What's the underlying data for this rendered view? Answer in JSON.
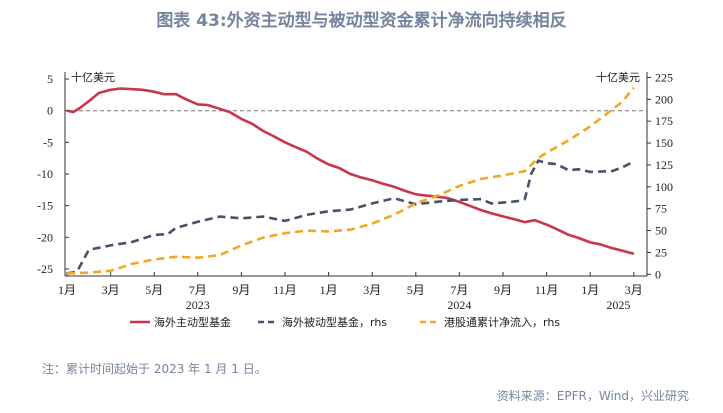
{
  "title": "图表 43:外资主动型与被动型资金累计净流向持续相反",
  "note": "注：累计时间起始于 2023 年 1 月 1 日。",
  "source": "资料来源：EPFR，Wind，兴业研究",
  "chart_data": {
    "type": "line",
    "title": "图表 43:外资主动型与被动型资金累计净流向持续相反",
    "left_axis": {
      "unit_label": "十亿美元",
      "ylim": [
        -26,
        5
      ],
      "ticks": [
        5,
        0,
        -5,
        -10,
        -15,
        -20,
        -25
      ]
    },
    "right_axis": {
      "unit_label": "十亿美元",
      "ylim": [
        0,
        225
      ],
      "ticks": [
        225,
        200,
        175,
        150,
        125,
        100,
        75,
        50,
        25,
        0
      ]
    },
    "x_ticks": [
      {
        "date": "2023-01-01",
        "label": "1月"
      },
      {
        "date": "2023-03-01",
        "label": "3月"
      },
      {
        "date": "2023-05-01",
        "label": "5月"
      },
      {
        "date": "2023-07-01",
        "label": "7月"
      },
      {
        "date": "2023-09-01",
        "label": "9月"
      },
      {
        "date": "2023-11-01",
        "label": "11月"
      },
      {
        "date": "2024-01-01",
        "label": "1月"
      },
      {
        "date": "2024-03-01",
        "label": "3月"
      },
      {
        "date": "2024-05-01",
        "label": "5月"
      },
      {
        "date": "2024-07-01",
        "label": "7月"
      },
      {
        "date": "2024-09-01",
        "label": "9月"
      },
      {
        "date": "2024-11-01",
        "label": "11月"
      },
      {
        "date": "2025-01-01",
        "label": "1月"
      },
      {
        "date": "2025-03-01",
        "label": "3月"
      }
    ],
    "year_labels": [
      {
        "date": "2023-07-01",
        "label": "2023"
      },
      {
        "date": "2024-07-01",
        "label": "2024"
      },
      {
        "date": "2025-02-10",
        "label": "2025"
      }
    ],
    "zero_line": true,
    "legend_position": "bottom",
    "series": [
      {
        "name": "海外主动型基金",
        "axis": "left",
        "color": "#c9364c",
        "style": "solid",
        "points": [
          [
            "2023-01-01",
            0
          ],
          [
            "2023-01-10",
            -0.2
          ],
          [
            "2023-01-20",
            0.5
          ],
          [
            "2023-02-01",
            1.5
          ],
          [
            "2023-02-15",
            2.8
          ],
          [
            "2023-03-01",
            3.3
          ],
          [
            "2023-03-15",
            3.5
          ],
          [
            "2023-04-01",
            3.4
          ],
          [
            "2023-04-15",
            3.3
          ],
          [
            "2023-05-01",
            3.0
          ],
          [
            "2023-05-15",
            2.6
          ],
          [
            "2023-06-01",
            2.6
          ],
          [
            "2023-06-15",
            1.8
          ],
          [
            "2023-07-01",
            1.0
          ],
          [
            "2023-07-15",
            0.9
          ],
          [
            "2023-08-01",
            0.3
          ],
          [
            "2023-08-15",
            -0.2
          ],
          [
            "2023-09-01",
            -1.3
          ],
          [
            "2023-09-15",
            -2.0
          ],
          [
            "2023-10-01",
            -3.2
          ],
          [
            "2023-10-15",
            -4.0
          ],
          [
            "2023-11-01",
            -5.0
          ],
          [
            "2023-11-15",
            -5.7
          ],
          [
            "2023-12-01",
            -6.5
          ],
          [
            "2023-12-15",
            -7.5
          ],
          [
            "2024-01-01",
            -8.5
          ],
          [
            "2024-01-15",
            -9.0
          ],
          [
            "2024-02-01",
            -10.0
          ],
          [
            "2024-02-15",
            -10.5
          ],
          [
            "2024-03-01",
            -11.0
          ],
          [
            "2024-03-15",
            -11.5
          ],
          [
            "2024-04-01",
            -12.0
          ],
          [
            "2024-04-15",
            -12.6
          ],
          [
            "2024-05-01",
            -13.2
          ],
          [
            "2024-05-15",
            -13.4
          ],
          [
            "2024-06-01",
            -13.6
          ],
          [
            "2024-06-15",
            -13.8
          ],
          [
            "2024-07-01",
            -14.4
          ],
          [
            "2024-07-15",
            -15.0
          ],
          [
            "2024-08-01",
            -15.7
          ],
          [
            "2024-08-15",
            -16.2
          ],
          [
            "2024-09-01",
            -16.7
          ],
          [
            "2024-09-15",
            -17.1
          ],
          [
            "2024-10-01",
            -17.6
          ],
          [
            "2024-10-15",
            -17.3
          ],
          [
            "2024-11-01",
            -18.0
          ],
          [
            "2024-11-15",
            -18.7
          ],
          [
            "2024-12-01",
            -19.6
          ],
          [
            "2024-12-15",
            -20.1
          ],
          [
            "2025-01-01",
            -20.8
          ],
          [
            "2025-01-15",
            -21.1
          ],
          [
            "2025-02-01",
            -21.7
          ],
          [
            "2025-02-15",
            -22.1
          ],
          [
            "2025-03-01",
            -22.6
          ]
        ]
      },
      {
        "name": "海外被动型基金，rhs",
        "axis": "right",
        "color": "#44546a",
        "style": "dashed",
        "points": [
          [
            "2023-01-01",
            1
          ],
          [
            "2023-01-15",
            3
          ],
          [
            "2023-02-01",
            28
          ],
          [
            "2023-03-01",
            33
          ],
          [
            "2023-04-01",
            37
          ],
          [
            "2023-05-01",
            45
          ],
          [
            "2023-05-20",
            46
          ],
          [
            "2023-06-01",
            53
          ],
          [
            "2023-07-01",
            60
          ],
          [
            "2023-08-01",
            66
          ],
          [
            "2023-09-01",
            64
          ],
          [
            "2023-10-01",
            66
          ],
          [
            "2023-11-01",
            61
          ],
          [
            "2023-12-01",
            68
          ],
          [
            "2024-01-01",
            72
          ],
          [
            "2024-02-01",
            74
          ],
          [
            "2024-03-01",
            81
          ],
          [
            "2024-04-01",
            87
          ],
          [
            "2024-05-01",
            80
          ],
          [
            "2024-06-01",
            83
          ],
          [
            "2024-07-01",
            85
          ],
          [
            "2024-08-01",
            86
          ],
          [
            "2024-08-15",
            81
          ],
          [
            "2024-09-01",
            82
          ],
          [
            "2024-09-25",
            84
          ],
          [
            "2024-10-01",
            86
          ],
          [
            "2024-10-10",
            115
          ],
          [
            "2024-10-20",
            130
          ],
          [
            "2024-11-01",
            127
          ],
          [
            "2024-11-15",
            126
          ],
          [
            "2024-12-01",
            119
          ],
          [
            "2024-12-15",
            120
          ],
          [
            "2025-01-01",
            117
          ],
          [
            "2025-02-01",
            118
          ],
          [
            "2025-02-15",
            122
          ],
          [
            "2025-03-01",
            129
          ]
        ]
      },
      {
        "name": "港股通累计净流入，rhs",
        "axis": "right",
        "color": "#f5a623",
        "style": "dashed",
        "points": [
          [
            "2023-01-01",
            1
          ],
          [
            "2023-02-01",
            2
          ],
          [
            "2023-03-01",
            4
          ],
          [
            "2023-04-01",
            12
          ],
          [
            "2023-05-01",
            17
          ],
          [
            "2023-06-01",
            20
          ],
          [
            "2023-07-01",
            19
          ],
          [
            "2023-08-01",
            22
          ],
          [
            "2023-09-01",
            33
          ],
          [
            "2023-10-01",
            42
          ],
          [
            "2023-11-01",
            47
          ],
          [
            "2023-12-01",
            50
          ],
          [
            "2024-01-01",
            49
          ],
          [
            "2024-02-01",
            51
          ],
          [
            "2024-03-01",
            58
          ],
          [
            "2024-04-01",
            68
          ],
          [
            "2024-05-01",
            81
          ],
          [
            "2024-06-01",
            90
          ],
          [
            "2024-07-01",
            101
          ],
          [
            "2024-08-01",
            109
          ],
          [
            "2024-09-01",
            113
          ],
          [
            "2024-10-01",
            118
          ],
          [
            "2024-10-20",
            133
          ],
          [
            "2024-11-01",
            139
          ],
          [
            "2024-12-01",
            153
          ],
          [
            "2025-01-01",
            169
          ],
          [
            "2025-02-01",
            188
          ],
          [
            "2025-02-15",
            197
          ],
          [
            "2025-03-01",
            213
          ]
        ]
      }
    ]
  }
}
